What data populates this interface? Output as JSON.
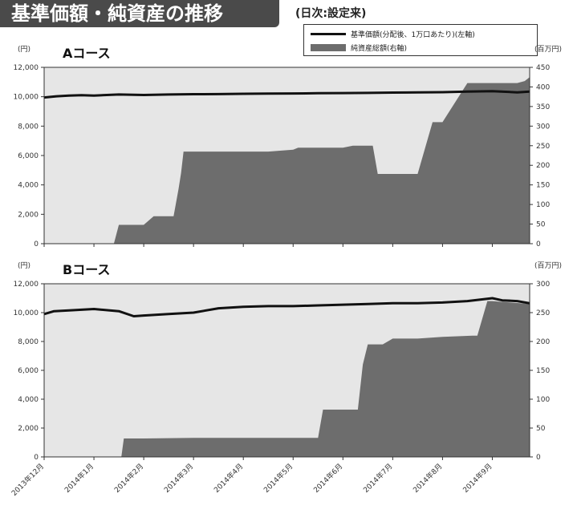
{
  "header": {
    "title": "基準価額・純資産の推移",
    "subtitle": "(日次:設定来)"
  },
  "legend": {
    "nav_label": "基準価額(分配後、1万口あたり)(左軸)",
    "assets_label": "純資産総額(右軸)"
  },
  "colors": {
    "plot_background": "#e6e6e6",
    "assets_fill": "#6d6d6d",
    "nav_line": "#111111"
  },
  "x_tick_labels": [
    "2013年12月",
    "2014年1月",
    "2014年2月",
    "2014年3月",
    "2014年4月",
    "2014年5月",
    "2014年6月",
    "2014年7月",
    "2014年8月",
    "2014年9月"
  ],
  "chart_data": [
    {
      "type": "line",
      "panel_title": "Aコース",
      "left_unit": "(円)",
      "right_unit": "(百万円)",
      "left_ticks": [
        "12,000",
        "10,000",
        "8,000",
        "6,000",
        "4,000",
        "2,000",
        "0"
      ],
      "right_ticks": [
        "450",
        "400",
        "350",
        "300",
        "250",
        "200",
        "150",
        "100",
        "50",
        "0"
      ],
      "ylim_left": [
        0,
        12000
      ],
      "ylim_right": [
        0,
        450
      ],
      "xlim": [
        0,
        9.75
      ],
      "series": [
        {
          "name": "基準価額(分配後、1万口あたり)(左軸)",
          "axis": "left",
          "kind": "line",
          "x": [
            0,
            0.25,
            0.5,
            0.75,
            1.0,
            1.5,
            2.0,
            2.5,
            3.0,
            3.5,
            4.0,
            4.5,
            5.0,
            5.5,
            6.0,
            6.5,
            7.0,
            7.5,
            8.0,
            8.5,
            9.0,
            9.5,
            9.75
          ],
          "y": [
            9950,
            10030,
            10080,
            10100,
            10080,
            10150,
            10120,
            10150,
            10170,
            10180,
            10200,
            10210,
            10220,
            10240,
            10250,
            10260,
            10280,
            10290,
            10310,
            10350,
            10380,
            10300,
            10350
          ]
        },
        {
          "name": "純資産総額(右軸)",
          "axis": "right",
          "kind": "area",
          "x": [
            0,
            1.4,
            1.5,
            2.0,
            2.2,
            2.6,
            2.7,
            2.75,
            2.8,
            3.8,
            4.0,
            4.5,
            5.0,
            5.1,
            5.4,
            5.6,
            6.0,
            6.2,
            6.6,
            6.7,
            7.0,
            7.2,
            7.5,
            7.8,
            8.0,
            8.5,
            9.0,
            9.5,
            9.65,
            9.75
          ],
          "y": [
            0,
            0,
            48,
            48,
            70,
            70,
            140,
            180,
            235,
            235,
            235,
            235,
            240,
            245,
            245,
            245,
            245,
            250,
            250,
            178,
            178,
            178,
            178,
            310,
            310,
            410,
            410,
            410,
            415,
            425
          ]
        }
      ]
    },
    {
      "type": "line",
      "panel_title": "Bコース",
      "left_unit": "(円)",
      "right_unit": "(百万円)",
      "left_ticks": [
        "12,000",
        "10,000",
        "8,000",
        "6,000",
        "4,000",
        "2,000",
        "0"
      ],
      "right_ticks": [
        "300",
        "250",
        "200",
        "150",
        "100",
        "50",
        "0"
      ],
      "ylim_left": [
        0,
        12000
      ],
      "ylim_right": [
        0,
        300
      ],
      "xlim": [
        0,
        9.75
      ],
      "series": [
        {
          "name": "基準価額(分配後、1万口あたり)(左軸)",
          "axis": "left",
          "kind": "line",
          "x": [
            0,
            0.2,
            0.5,
            1.0,
            1.5,
            1.8,
            2.0,
            2.5,
            3.0,
            3.5,
            4.0,
            4.5,
            5.0,
            5.5,
            6.0,
            6.5,
            7.0,
            7.5,
            8.0,
            8.5,
            9.0,
            9.2,
            9.5,
            9.75
          ],
          "y": [
            9900,
            10100,
            10150,
            10250,
            10100,
            9750,
            9800,
            9900,
            10000,
            10300,
            10400,
            10450,
            10450,
            10500,
            10550,
            10600,
            10650,
            10650,
            10700,
            10800,
            11000,
            10850,
            10800,
            10650
          ]
        },
        {
          "name": "純資産総額(右軸)",
          "axis": "right",
          "kind": "area",
          "x": [
            0,
            1.55,
            1.6,
            2.0,
            3.0,
            4.0,
            5.0,
            5.5,
            5.6,
            6.0,
            6.3,
            6.4,
            6.5,
            6.8,
            7.0,
            7.5,
            8.0,
            8.6,
            8.7,
            8.9,
            9.0,
            9.75
          ],
          "y": [
            0,
            0,
            32,
            32,
            33,
            33,
            33,
            33,
            82,
            82,
            82,
            160,
            195,
            195,
            205,
            205,
            208,
            210,
            210,
            270,
            270,
            265
          ]
        }
      ]
    }
  ]
}
